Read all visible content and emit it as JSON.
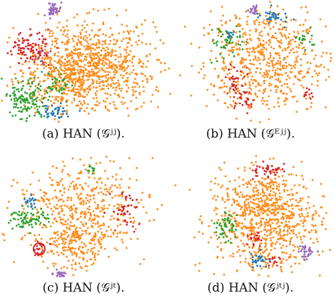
{
  "colors": {
    "orange": "#ff8c1a",
    "red": "#d62728",
    "green": "#2ca02c",
    "blue": "#1f77b4",
    "purple": "#9467bd",
    "text": "#111111"
  },
  "figure": {
    "panels": [
      {
        "id": "a",
        "caption": "(a) HAN (𝒢ʲʲ)."
      },
      {
        "id": "b",
        "caption": "(b) HAN (𝒢ᴱʲʲ)."
      },
      {
        "id": "c",
        "caption": "(c) HAN (𝒢ʲᵗ)."
      },
      {
        "id": "d",
        "caption": "(d) HAN (𝒢ʲᵗʲ)."
      }
    ]
  }
}
